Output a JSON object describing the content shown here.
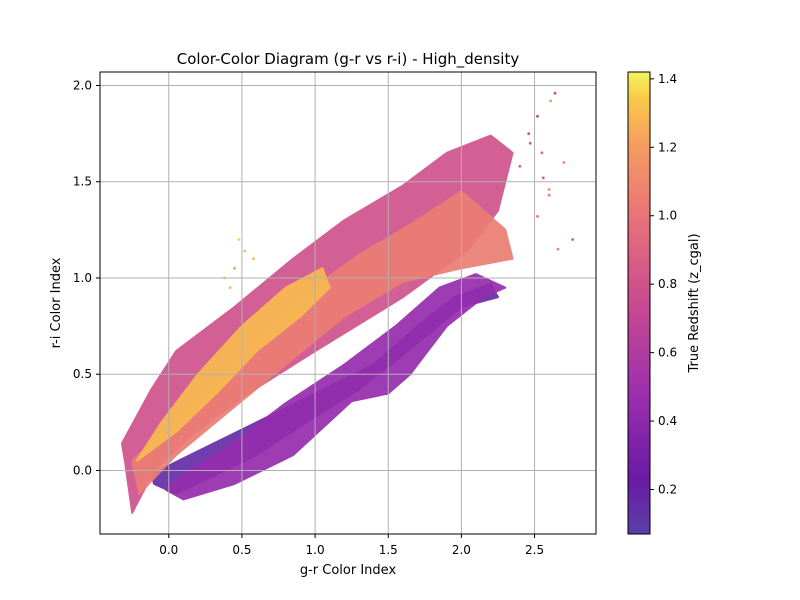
{
  "chart_data": {
    "type": "scatter",
    "title": "Color-Color Diagram (g-r vs r-i) - High_density",
    "xlabel": "g-r Color Index",
    "ylabel": "r-i Color Index",
    "xlim": [
      -0.47,
      2.92
    ],
    "ylim": [
      -0.33,
      2.07
    ],
    "xticks": [
      "0.0",
      "0.5",
      "1.0",
      "1.5",
      "2.0",
      "2.5"
    ],
    "yticks": [
      "0.0",
      "0.5",
      "1.0",
      "1.5",
      "2.0"
    ],
    "grid": true,
    "colormap": "plasma",
    "colorbar": {
      "label": "True Redshift (z_cgal)",
      "range": [
        0.07,
        1.42
      ],
      "ticks": [
        "0.2",
        "0.4",
        "0.6",
        "0.8",
        "1.0",
        "1.2",
        "1.4"
      ]
    },
    "regions": [
      {
        "redshift": 0.15,
        "points": [
          [
            -0.12,
            -0.02
          ],
          [
            0.2,
            0.1
          ],
          [
            0.6,
            0.25
          ],
          [
            1.0,
            0.4
          ],
          [
            1.4,
            0.55
          ],
          [
            1.7,
            0.75
          ],
          [
            1.95,
            0.9
          ],
          [
            2.2,
            0.97
          ],
          [
            2.25,
            0.9
          ],
          [
            2.0,
            0.85
          ],
          [
            1.6,
            0.6
          ],
          [
            1.3,
            0.42
          ],
          [
            1.0,
            0.28
          ],
          [
            0.6,
            0.08
          ],
          [
            0.3,
            -0.03
          ],
          [
            0.05,
            -0.12
          ],
          [
            -0.1,
            -0.07
          ]
        ]
      },
      {
        "redshift": 0.45,
        "points": [
          [
            -0.02,
            -0.1
          ],
          [
            0.1,
            -0.15
          ],
          [
            0.45,
            -0.07
          ],
          [
            0.85,
            0.08
          ],
          [
            1.25,
            0.36
          ],
          [
            1.5,
            0.4
          ],
          [
            1.65,
            0.5
          ],
          [
            1.9,
            0.75
          ],
          [
            2.15,
            0.9
          ],
          [
            2.3,
            0.95
          ],
          [
            2.1,
            1.02
          ],
          [
            1.85,
            0.95
          ],
          [
            1.55,
            0.75
          ],
          [
            1.2,
            0.55
          ],
          [
            0.8,
            0.35
          ],
          [
            0.4,
            0.12
          ],
          [
            0.1,
            -0.02
          ]
        ]
      },
      {
        "redshift": 0.8,
        "points": [
          [
            -0.32,
            0.14
          ],
          [
            -0.12,
            0.42
          ],
          [
            0.05,
            0.62
          ],
          [
            0.45,
            0.85
          ],
          [
            0.85,
            1.1
          ],
          [
            1.2,
            1.3
          ],
          [
            1.6,
            1.48
          ],
          [
            1.9,
            1.65
          ],
          [
            2.2,
            1.74
          ],
          [
            2.35,
            1.65
          ],
          [
            2.25,
            1.35
          ],
          [
            2.05,
            1.15
          ],
          [
            1.6,
            0.9
          ],
          [
            1.0,
            0.62
          ],
          [
            0.5,
            0.38
          ],
          [
            0.15,
            0.18
          ],
          [
            -0.1,
            0.0
          ],
          [
            -0.25,
            -0.22
          ],
          [
            -0.3,
            0.05
          ]
        ]
      },
      {
        "redshift": 1.05,
        "points": [
          [
            -0.25,
            0.05
          ],
          [
            0.1,
            0.3
          ],
          [
            0.5,
            0.6
          ],
          [
            0.9,
            0.9
          ],
          [
            1.3,
            1.12
          ],
          [
            1.7,
            1.3
          ],
          [
            2.0,
            1.45
          ],
          [
            2.3,
            1.25
          ],
          [
            2.35,
            1.1
          ],
          [
            2.0,
            1.05
          ],
          [
            1.6,
            0.98
          ],
          [
            1.2,
            0.8
          ],
          [
            0.8,
            0.55
          ],
          [
            0.4,
            0.3
          ],
          [
            0.05,
            0.08
          ],
          [
            -0.2,
            -0.12
          ]
        ]
      },
      {
        "redshift": 1.3,
        "points": [
          [
            -0.22,
            0.05
          ],
          [
            0.05,
            0.2
          ],
          [
            0.35,
            0.42
          ],
          [
            0.6,
            0.62
          ],
          [
            0.9,
            0.8
          ],
          [
            1.1,
            0.95
          ],
          [
            1.05,
            1.05
          ],
          [
            0.8,
            0.95
          ],
          [
            0.5,
            0.75
          ],
          [
            0.2,
            0.5
          ],
          [
            -0.05,
            0.25
          ]
        ]
      }
    ],
    "outliers": [
      {
        "x": 2.61,
        "y": 1.92,
        "redshift": 1.2
      },
      {
        "x": 2.64,
        "y": 1.96,
        "redshift": 0.75
      },
      {
        "x": 2.52,
        "y": 1.84,
        "redshift": 0.7
      },
      {
        "x": 2.76,
        "y": 1.2,
        "redshift": 0.9
      },
      {
        "x": 2.7,
        "y": 1.6,
        "redshift": 1.1
      },
      {
        "x": 2.55,
        "y": 1.65,
        "redshift": 0.95
      },
      {
        "x": 2.6,
        "y": 1.43,
        "redshift": 1.05
      },
      {
        "x": 2.47,
        "y": 1.7,
        "redshift": 0.85
      },
      {
        "x": 2.52,
        "y": 1.32,
        "redshift": 1.0
      },
      {
        "x": 2.4,
        "y": 1.58,
        "redshift": 0.9
      },
      {
        "x": 2.56,
        "y": 1.52,
        "redshift": 0.85
      },
      {
        "x": 2.66,
        "y": 1.15,
        "redshift": 1.1
      },
      {
        "x": 0.52,
        "y": 1.14,
        "redshift": 1.3
      },
      {
        "x": 0.48,
        "y": 1.2,
        "redshift": 1.35
      },
      {
        "x": 0.45,
        "y": 1.05,
        "redshift": 1.2
      },
      {
        "x": 0.42,
        "y": 0.95,
        "redshift": 1.3
      },
      {
        "x": 0.58,
        "y": 1.1,
        "redshift": 1.3
      },
      {
        "x": 0.38,
        "y": 1.0,
        "redshift": 1.35
      },
      {
        "x": 2.6,
        "y": 1.46,
        "redshift": 1.15
      },
      {
        "x": 2.46,
        "y": 1.75,
        "redshift": 0.8
      }
    ]
  }
}
